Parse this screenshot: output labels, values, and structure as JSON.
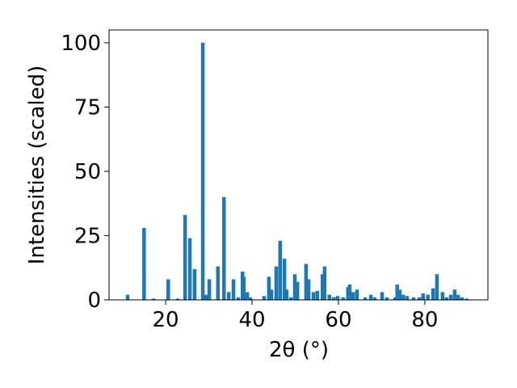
{
  "chart_data": {
    "type": "bar",
    "xlabel": "2θ (°)",
    "ylabel": "Intensities (scaled)",
    "color": "#1f77b4",
    "x": [
      11.2,
      15.0,
      17.2,
      20.6,
      22.8,
      24.5,
      25.6,
      26.7,
      28.6,
      29.3,
      30.1,
      32.1,
      33.5,
      34.6,
      35.7,
      36.8,
      37.8,
      38.1,
      38.9,
      39.6,
      42.8,
      43.9,
      44.5,
      45.6,
      46.5,
      47.5,
      48.0,
      49.0,
      49.9,
      50.5,
      52.5,
      53.1,
      54.2,
      55.1,
      56.3,
      56.8,
      57.9,
      58.9,
      59.8,
      61.1,
      62.2,
      62.6,
      63.4,
      64.3,
      66.2,
      67.5,
      68.4,
      70.1,
      71.2,
      73.1,
      73.6,
      74.2,
      75.0,
      75.9,
      77.4,
      78.7,
      79.6,
      80.7,
      81.9,
      82.8,
      84.1,
      85.0,
      86.0,
      86.9,
      87.7,
      88.6,
      89.7
    ],
    "values": [
      2,
      28,
      0.5,
      8,
      0.5,
      33,
      24,
      12,
      100,
      2,
      8,
      13,
      40,
      3,
      8,
      1,
      11,
      9,
      3,
      1,
      1.5,
      9,
      4,
      13,
      23,
      16,
      4,
      1,
      10,
      7,
      14,
      8,
      3,
      3.5,
      10,
      13,
      2,
      1,
      1.5,
      1,
      5,
      6,
      3,
      4,
      1,
      2,
      1,
      3,
      1,
      1,
      6,
      4,
      2,
      1.5,
      1,
      1,
      2.5,
      2,
      4.5,
      10,
      3,
      1,
      2,
      4,
      2,
      1,
      0.5
    ],
    "xlim": [
      6.9,
      94.6
    ],
    "ylim": [
      0,
      105
    ],
    "xticks": [
      20,
      40,
      60,
      80
    ],
    "yticks": [
      0,
      25,
      50,
      75,
      100
    ]
  }
}
